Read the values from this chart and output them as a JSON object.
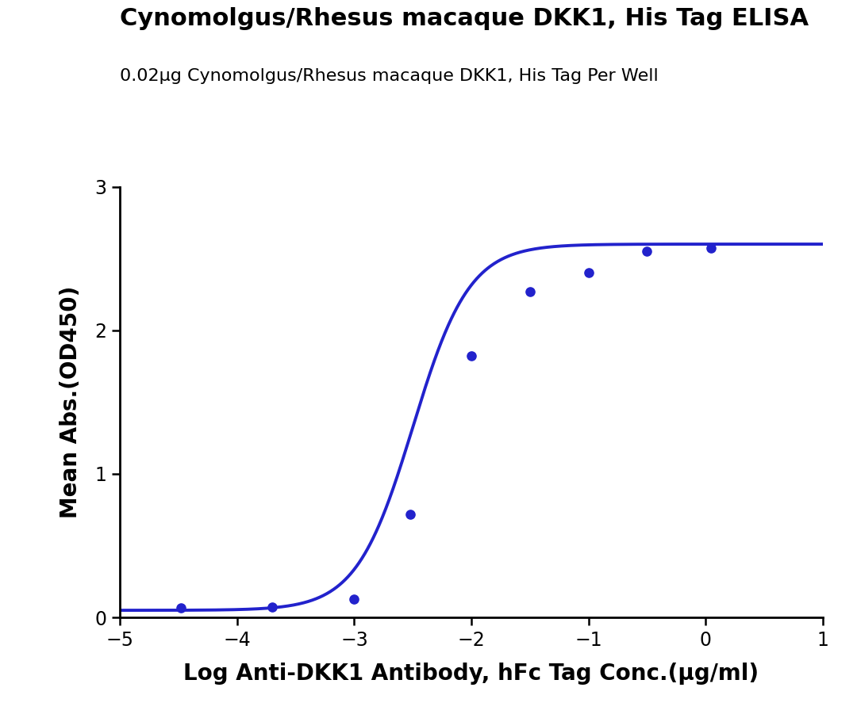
{
  "title": "Cynomolgus/Rhesus macaque DKK1, His Tag ELISA",
  "subtitle": "0.02μg Cynomolgus/Rhesus macaque DKK1, His Tag Per Well",
  "xlabel": "Log Anti-DKK1 Antibody, hFc Tag Conc.(μg/ml)",
  "ylabel": "Mean Abs.(OD450)",
  "data_x": [
    -4.477,
    -3.699,
    -3.0,
    -2.522,
    -2.0,
    -1.5,
    -1.0,
    -0.5,
    0.046
  ],
  "data_y": [
    0.065,
    0.075,
    0.13,
    0.72,
    1.82,
    2.27,
    2.4,
    2.55,
    2.57
  ],
  "xlim": [
    -5,
    1
  ],
  "ylim": [
    0,
    3
  ],
  "xticks": [
    -5,
    -4,
    -3,
    -2,
    -1,
    0,
    1
  ],
  "yticks": [
    0,
    1,
    2,
    3
  ],
  "curve_color": "#2222cc",
  "dot_color": "#2222cc",
  "title_fontsize": 22,
  "subtitle_fontsize": 16,
  "axis_label_fontsize": 20,
  "tick_fontsize": 17,
  "line_width": 2.8,
  "dot_size": 65,
  "background_color": "#ffffff",
  "sigmoid_p0": [
    0.05,
    2.6,
    -2.5,
    1.8
  ]
}
